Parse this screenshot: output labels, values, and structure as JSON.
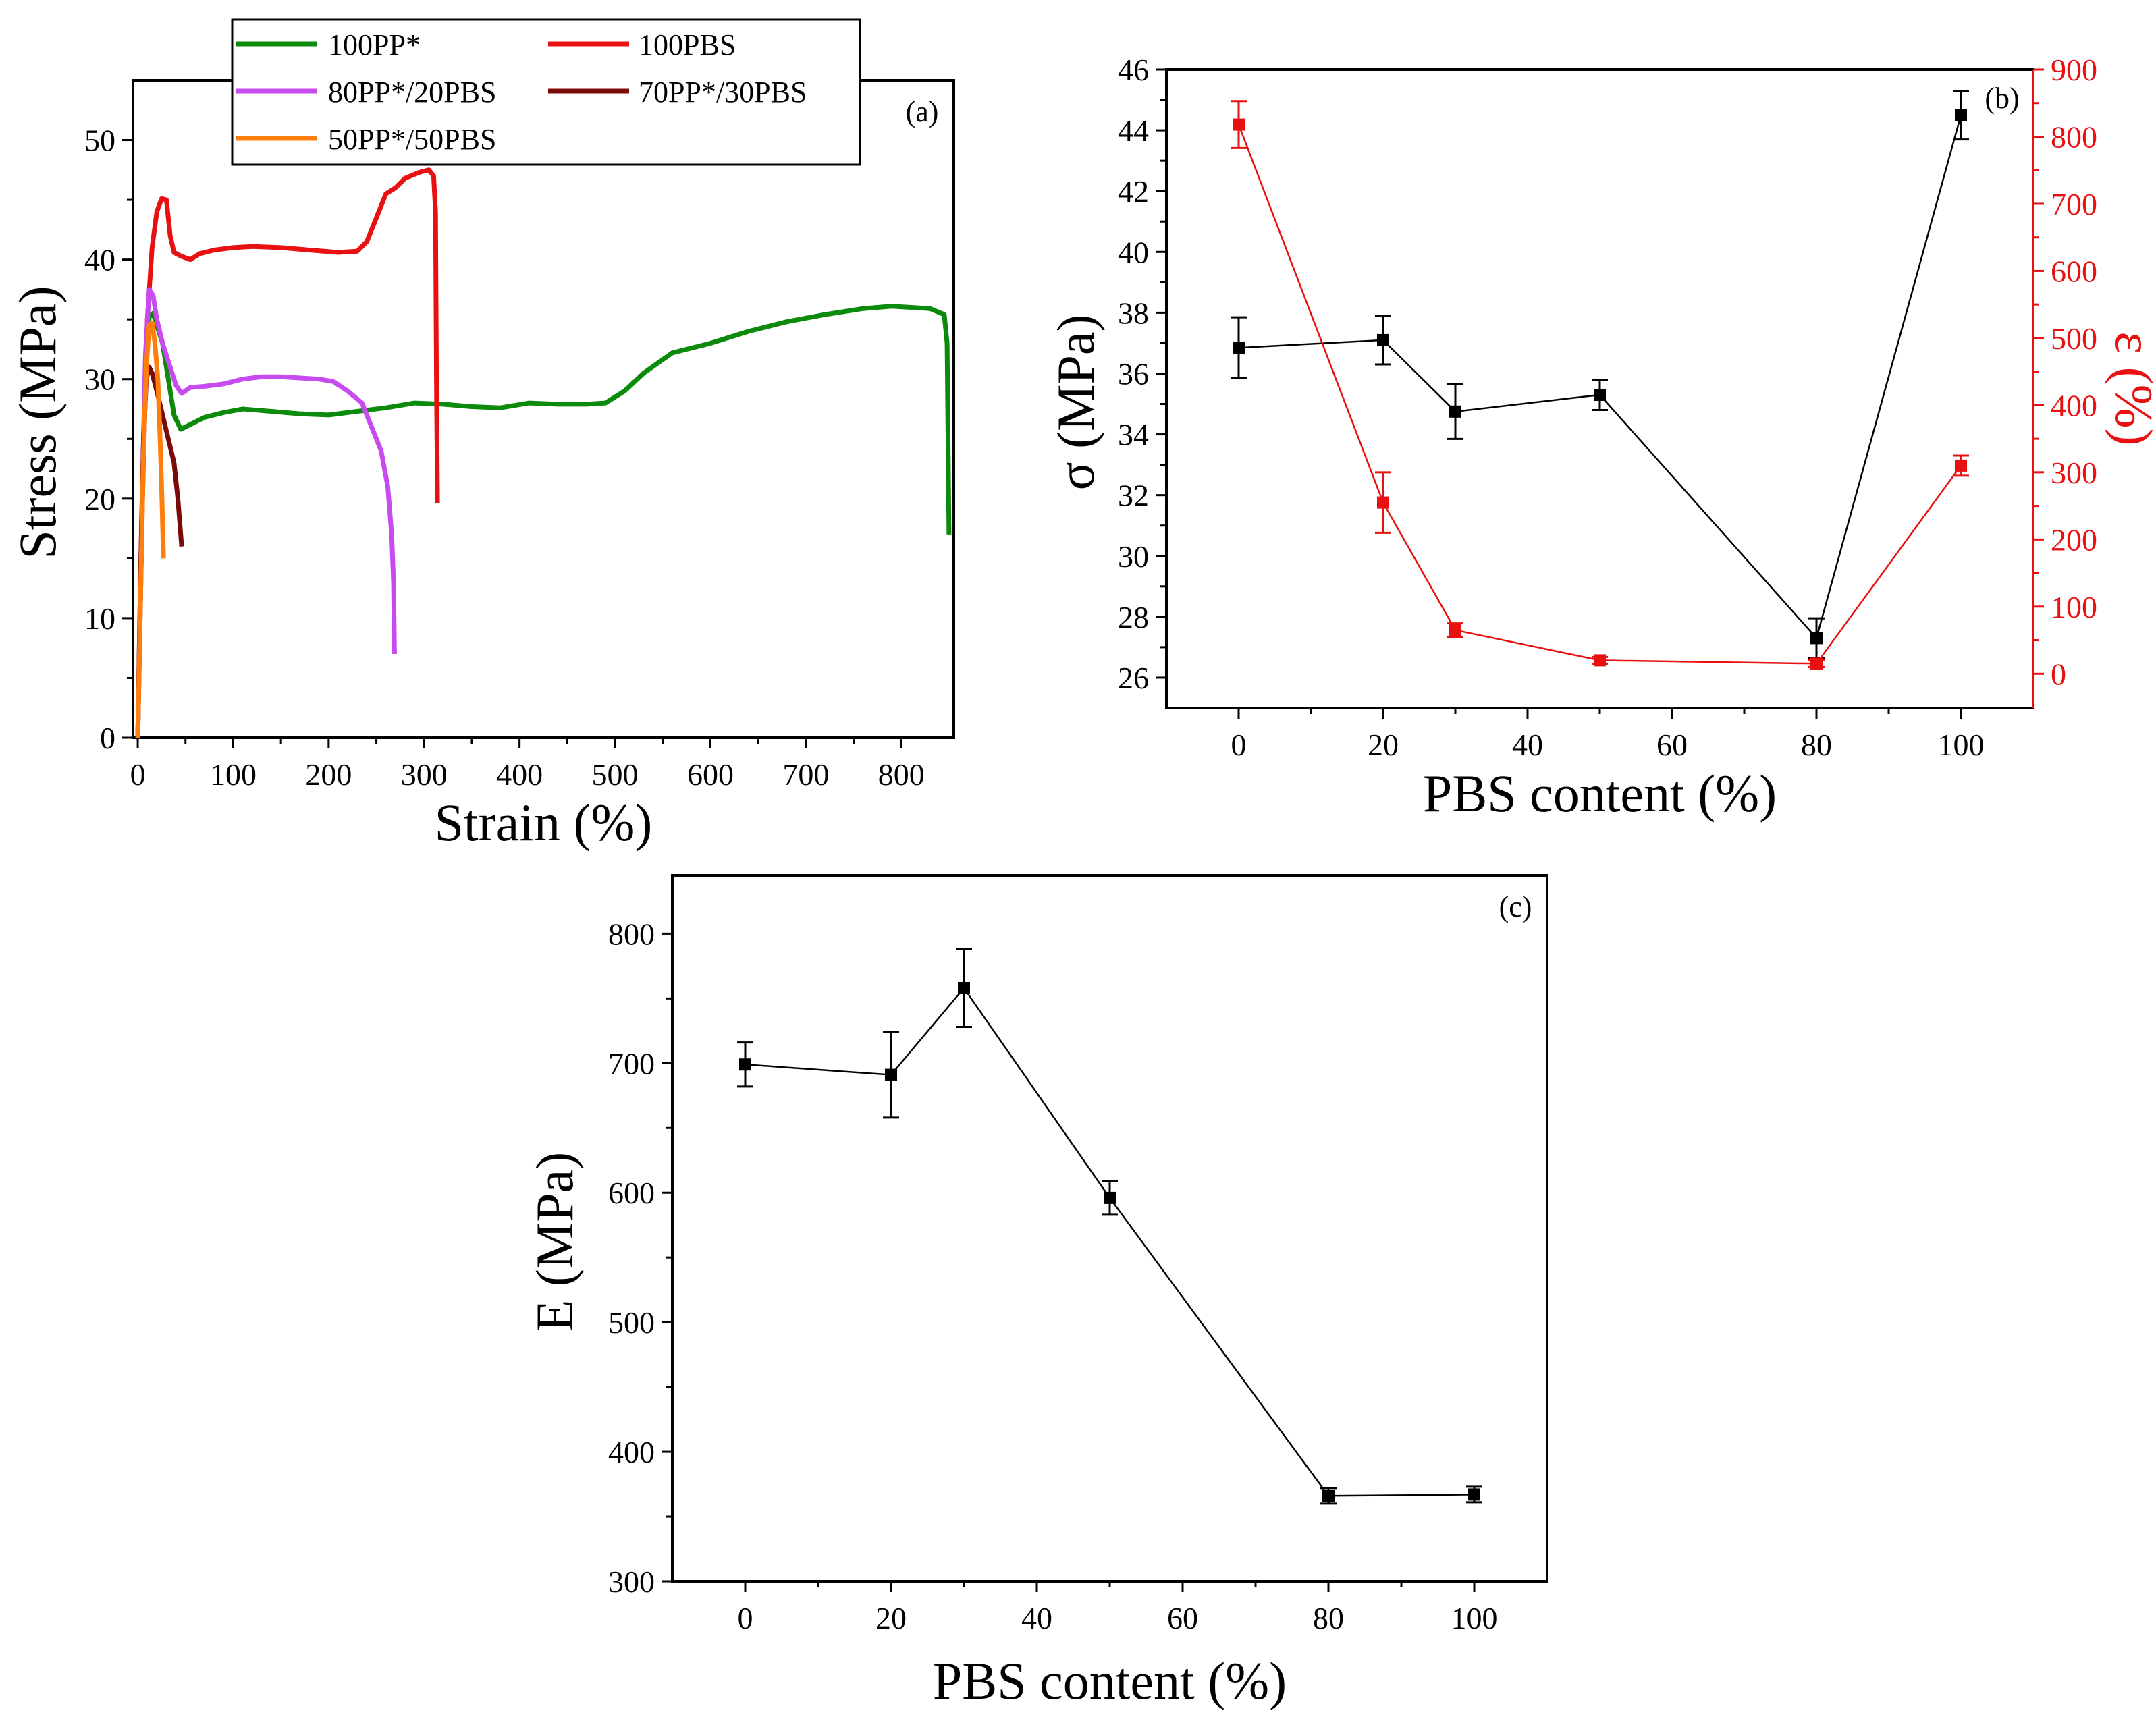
{
  "figure": {
    "panel_a": {
      "label": "(a)"
    },
    "panel_b": {
      "label": "(b)"
    },
    "panel_c": {
      "label": "(c)"
    }
  },
  "chart_data": [
    {
      "id": "a",
      "type": "line",
      "panel_label": "(a)",
      "xlabel": "Strain (%)",
      "ylabel": "Stress (MPa)",
      "xlim": [
        -5,
        855
      ],
      "ylim": [
        0,
        55
      ],
      "xticks": [
        0,
        100,
        200,
        300,
        400,
        500,
        600,
        700,
        800
      ],
      "yticks": [
        0,
        10,
        20,
        30,
        40,
        50
      ],
      "legend": {
        "placement": "top-left, outside top",
        "entries": [
          "100PP*",
          "100PBS",
          "80PP*/20PBS",
          "70PP*/30PBS",
          "50PP*/50PBS"
        ]
      },
      "series": [
        {
          "name": "100PP*",
          "color": "#0b8a0b",
          "points": [
            [
              0,
              0
            ],
            [
              3,
              12
            ],
            [
              6,
              25
            ],
            [
              9,
              32
            ],
            [
              12,
              35.2
            ],
            [
              16,
              35.5
            ],
            [
              20,
              34.5
            ],
            [
              26,
              33
            ],
            [
              32,
              30
            ],
            [
              38,
              27
            ],
            [
              45,
              25.8
            ],
            [
              55,
              26.2
            ],
            [
              70,
              26.8
            ],
            [
              90,
              27.2
            ],
            [
              110,
              27.5
            ],
            [
              140,
              27.3
            ],
            [
              170,
              27.1
            ],
            [
              200,
              27
            ],
            [
              230,
              27.3
            ],
            [
              260,
              27.6
            ],
            [
              290,
              28
            ],
            [
              320,
              27.9
            ],
            [
              350,
              27.7
            ],
            [
              380,
              27.6
            ],
            [
              410,
              28
            ],
            [
              440,
              27.9
            ],
            [
              470,
              27.9
            ],
            [
              490,
              28
            ],
            [
              510,
              29
            ],
            [
              530,
              30.5
            ],
            [
              560,
              32.2
            ],
            [
              600,
              33
            ],
            [
              640,
              34
            ],
            [
              680,
              34.8
            ],
            [
              720,
              35.4
            ],
            [
              760,
              35.9
            ],
            [
              790,
              36.1
            ],
            [
              810,
              36
            ],
            [
              830,
              35.9
            ],
            [
              845,
              35.4
            ],
            [
              848,
              33
            ],
            [
              850,
              17
            ]
          ]
        },
        {
          "name": "100PBS",
          "color": "#e81010",
          "points": [
            [
              0,
              0
            ],
            [
              5,
              20
            ],
            [
              10,
              35
            ],
            [
              15,
              41
            ],
            [
              20,
              44
            ],
            [
              25,
              45.1
            ],
            [
              30,
              45
            ],
            [
              34,
              42
            ],
            [
              38,
              40.6
            ],
            [
              45,
              40.3
            ],
            [
              55,
              40
            ],
            [
              65,
              40.5
            ],
            [
              80,
              40.8
            ],
            [
              100,
              41
            ],
            [
              120,
              41.1
            ],
            [
              150,
              41
            ],
            [
              180,
              40.8
            ],
            [
              210,
              40.6
            ],
            [
              230,
              40.7
            ],
            [
              240,
              41.5
            ],
            [
              250,
              43.5
            ],
            [
              260,
              45.5
            ],
            [
              270,
              46
            ],
            [
              280,
              46.8
            ],
            [
              295,
              47.3
            ],
            [
              305,
              47.5
            ],
            [
              310,
              47
            ],
            [
              312,
              44
            ],
            [
              313,
              30
            ],
            [
              314,
              19.6
            ]
          ]
        },
        {
          "name": "80PP*/20PBS",
          "color": "#c84bf0",
          "points": [
            [
              0,
              0
            ],
            [
              4,
              18
            ],
            [
              8,
              32
            ],
            [
              12,
              37.5
            ],
            [
              16,
              37
            ],
            [
              20,
              35
            ],
            [
              26,
              33
            ],
            [
              32,
              31.5
            ],
            [
              40,
              29.5
            ],
            [
              46,
              28.8
            ],
            [
              55,
              29.3
            ],
            [
              70,
              29.4
            ],
            [
              90,
              29.6
            ],
            [
              110,
              30
            ],
            [
              130,
              30.2
            ],
            [
              150,
              30.2
            ],
            [
              170,
              30.1
            ],
            [
              190,
              30
            ],
            [
              205,
              29.8
            ],
            [
              220,
              29
            ],
            [
              235,
              28
            ],
            [
              245,
              26
            ],
            [
              255,
              24
            ],
            [
              262,
              21
            ],
            [
              266,
              17
            ],
            [
              268,
              13
            ],
            [
              269,
              7
            ]
          ]
        },
        {
          "name": "70PP*/30PBS",
          "color": "#7a0a0a",
          "points": [
            [
              0,
              0
            ],
            [
              3,
              14
            ],
            [
              6,
              25
            ],
            [
              9,
              30
            ],
            [
              12,
              31
            ],
            [
              15,
              30.5
            ],
            [
              20,
              29
            ],
            [
              26,
              27
            ],
            [
              32,
              25
            ],
            [
              38,
              23
            ],
            [
              42,
              20
            ],
            [
              45,
              17
            ],
            [
              46,
              16
            ]
          ]
        },
        {
          "name": "50PP*/50PBS",
          "color": "#ff7f0e",
          "points": [
            [
              0,
              0
            ],
            [
              3,
              12
            ],
            [
              6,
              24
            ],
            [
              9,
              31
            ],
            [
              12,
              34.5
            ],
            [
              15,
              34.7
            ],
            [
              18,
              33
            ],
            [
              21,
              30
            ],
            [
              23,
              26
            ],
            [
              25,
              21
            ],
            [
              27,
              15
            ]
          ]
        }
      ]
    },
    {
      "id": "b",
      "type": "line",
      "panel_label": "(b)",
      "xlabel": "PBS content (%)",
      "ylabel": "σ (MPa)",
      "y2label": "ε (%)",
      "xlim": [
        -10,
        110
      ],
      "ylim": [
        25,
        46
      ],
      "y2lim": [
        -51,
        900
      ],
      "xticks": [
        0,
        20,
        40,
        60,
        80,
        100
      ],
      "yticks": [
        26,
        28,
        30,
        32,
        34,
        36,
        38,
        40,
        42,
        44,
        46
      ],
      "y2ticks": [
        0,
        100,
        200,
        300,
        400,
        500,
        600,
        700,
        800,
        900
      ],
      "series": [
        {
          "name": "σ",
          "axis": "left",
          "color": "#000000",
          "x": [
            0,
            20,
            30,
            50,
            80,
            100
          ],
          "values": [
            36.85,
            37.1,
            34.75,
            35.3,
            27.3,
            44.5
          ],
          "errors": [
            1.0,
            0.8,
            0.9,
            0.5,
            0.65,
            0.8
          ]
        },
        {
          "name": "ε",
          "axis": "right",
          "color": "#e81010",
          "x": [
            0,
            20,
            30,
            50,
            80,
            100
          ],
          "values": [
            818,
            255,
            65,
            20,
            15,
            310
          ],
          "errors": [
            35,
            45,
            10,
            5,
            5,
            15
          ]
        }
      ]
    },
    {
      "id": "c",
      "type": "line",
      "panel_label": "(c)",
      "xlabel": "PBS content (%)",
      "ylabel": "E (MPa)",
      "xlim": [
        -10,
        110
      ],
      "ylim": [
        300,
        845
      ],
      "xticks": [
        0,
        20,
        40,
        60,
        80,
        100
      ],
      "yticks": [
        300,
        400,
        500,
        600,
        700,
        800
      ],
      "series": [
        {
          "name": "E",
          "color": "#000000",
          "x": [
            0,
            20,
            30,
            50,
            80,
            100
          ],
          "values": [
            699,
            691,
            758,
            596,
            366,
            367
          ],
          "errors": [
            17,
            33,
            30,
            13,
            6,
            6
          ]
        }
      ]
    }
  ]
}
